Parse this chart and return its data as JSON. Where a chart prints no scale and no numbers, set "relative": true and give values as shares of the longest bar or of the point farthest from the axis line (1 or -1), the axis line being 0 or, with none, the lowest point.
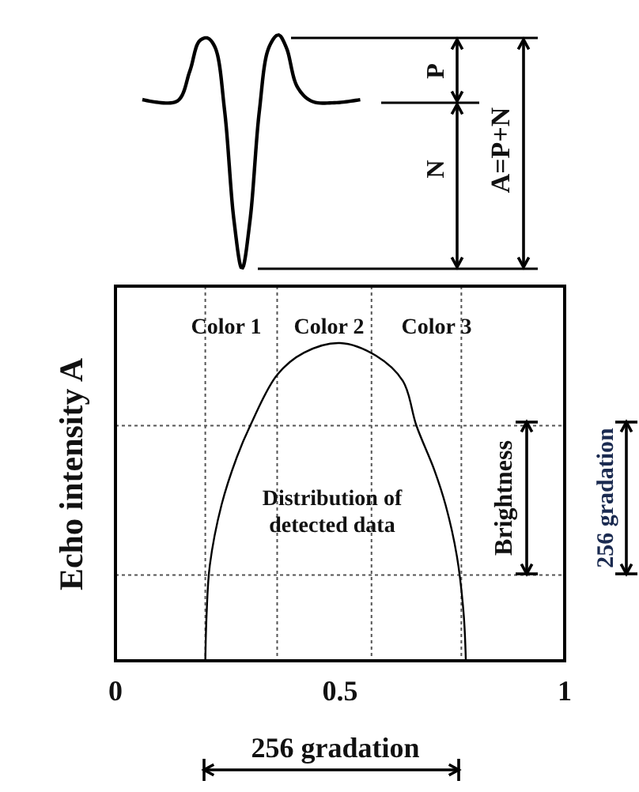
{
  "chart_data": {
    "type": "line",
    "ylabel": "Echo intensity A",
    "relative": true,
    "xlim": [
      0,
      1
    ],
    "xticks": [
      0,
      0.5,
      1
    ],
    "series": [
      {
        "color": "#000000",
        "x": [
          0.2,
          0.203,
          0.21,
          0.236,
          0.27,
          0.3,
          0.36,
          0.42,
          0.5,
          0.58,
          0.64,
          0.67,
          0.71,
          0.735,
          0.76,
          0.775,
          0.78
        ],
        "values": [
          0,
          0.15,
          0.3,
          0.49,
          0.64,
          0.74,
          0.9,
          0.97,
          1,
          0.96,
          0.88,
          0.74,
          0.6,
          0.49,
          0.33,
          0.15,
          0
        ]
      }
    ],
    "ref_lines": [
      {
        "axis": "x",
        "value": 0.2,
        "color": "#555555",
        "line_style": "dotted"
      },
      {
        "axis": "x",
        "value": 0.36,
        "color": "#555555",
        "line_style": "dotted"
      },
      {
        "axis": "x",
        "value": 0.57,
        "color": "#555555",
        "line_style": "dotted"
      },
      {
        "axis": "x",
        "value": 0.77,
        "color": "#555555",
        "line_style": "dotted"
      },
      {
        "axis": "y",
        "value": 0.27,
        "color": "#555555",
        "line_style": "dotted"
      },
      {
        "axis": "y",
        "value": 0.74,
        "color": "#555555",
        "line_style": "dotted"
      }
    ],
    "annotations": [
      "Color 1",
      "Color 2",
      "Color 3",
      "Distribution of detected data",
      "Brightness",
      "256 gradation",
      "256 gradation",
      "P",
      "N",
      "A=P+N"
    ]
  }
}
